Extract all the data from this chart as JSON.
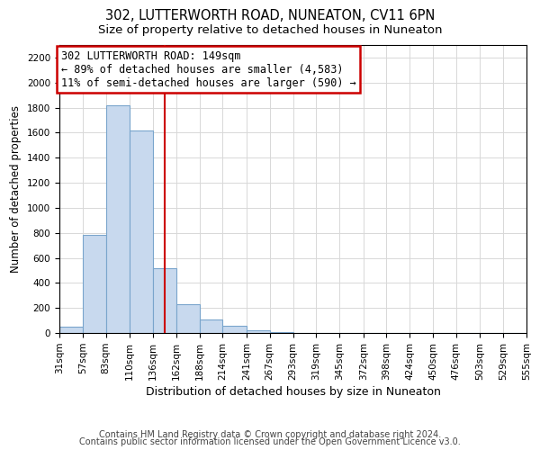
{
  "title1": "302, LUTTERWORTH ROAD, NUNEATON, CV11 6PN",
  "title2": "Size of property relative to detached houses in Nuneaton",
  "xlabel": "Distribution of detached houses by size in Nuneaton",
  "ylabel": "Number of detached properties",
  "bin_edges": [
    31,
    57,
    83,
    110,
    136,
    162,
    188,
    214,
    241,
    267,
    293,
    319,
    345,
    372,
    398,
    424,
    450,
    476,
    503,
    529,
    555
  ],
  "bar_heights": [
    50,
    780,
    1820,
    1620,
    520,
    230,
    110,
    55,
    20,
    5,
    0,
    0,
    0,
    0,
    0,
    0,
    0,
    0,
    0,
    0
  ],
  "bar_color": "#c8d9ee",
  "bar_edgecolor": "#7aa5cc",
  "property_size": 149,
  "vline_color": "#cc0000",
  "annotation_line1": "302 LUTTERWORTH ROAD: 149sqm",
  "annotation_line2": "← 89% of detached houses are smaller (4,583)",
  "annotation_line3": "11% of semi-detached houses are larger (590) →",
  "annotation_box_edgecolor": "#cc0000",
  "annotation_box_facecolor": "#ffffff",
  "ylim": [
    0,
    2300
  ],
  "yticks": [
    0,
    200,
    400,
    600,
    800,
    1000,
    1200,
    1400,
    1600,
    1800,
    2000,
    2200
  ],
  "footer1": "Contains HM Land Registry data © Crown copyright and database right 2024.",
  "footer2": "Contains public sector information licensed under the Open Government Licence v3.0.",
  "grid_color": "#d8d8d8",
  "title1_fontsize": 10.5,
  "title2_fontsize": 9.5,
  "xlabel_fontsize": 9,
  "ylabel_fontsize": 8.5,
  "tick_fontsize": 7.5,
  "annotation_fontsize": 8.5,
  "footer_fontsize": 7
}
